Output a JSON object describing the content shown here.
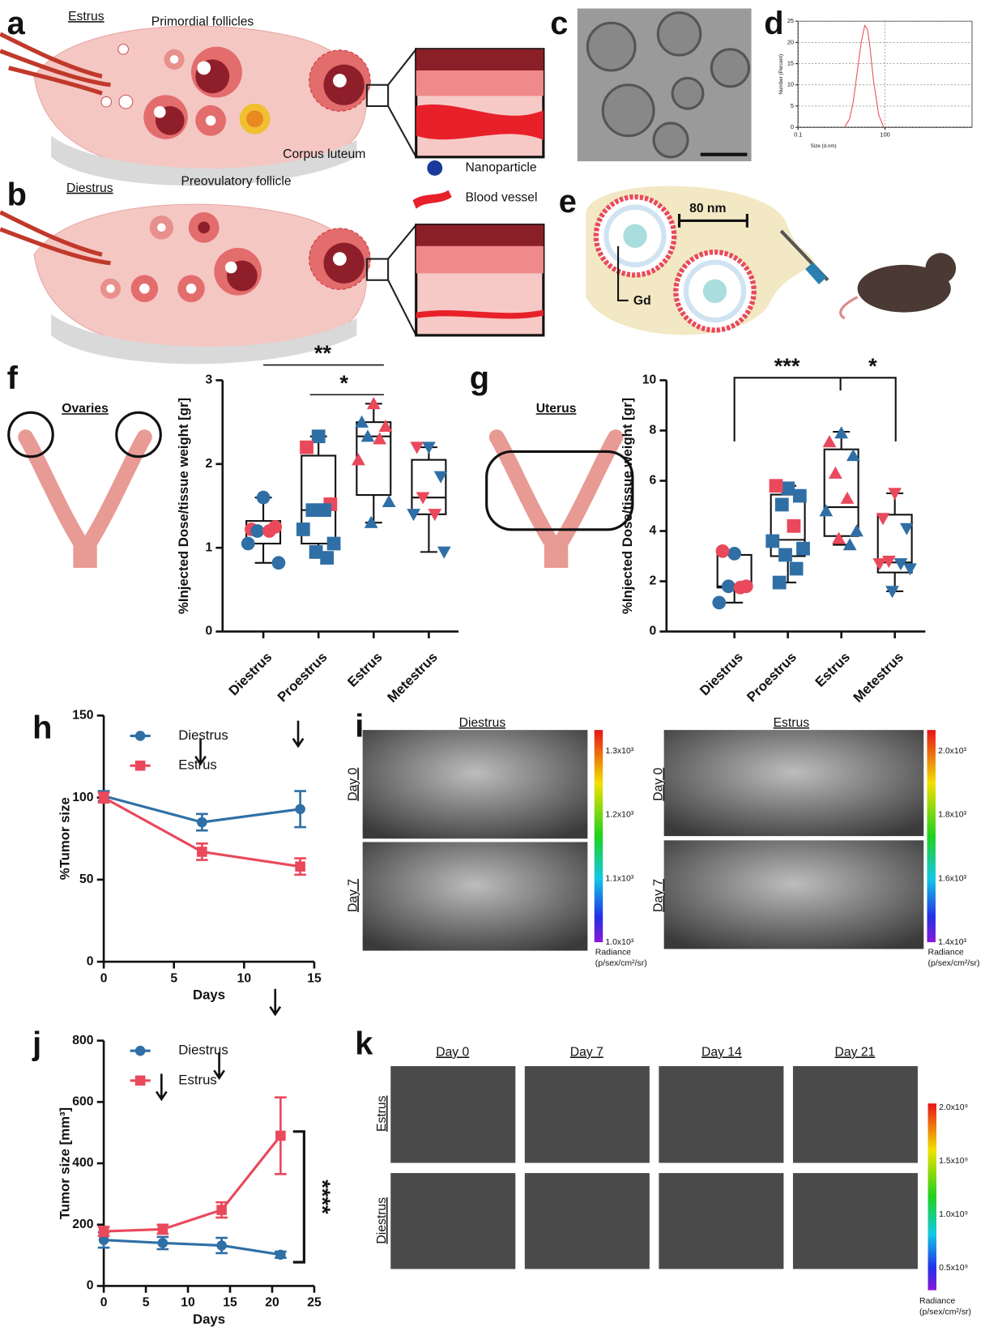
{
  "letters": [
    "a",
    "b",
    "c",
    "d",
    "e",
    "f",
    "g",
    "h",
    "i",
    "j",
    "k"
  ],
  "panel_a": {
    "title": "Estrus",
    "labels": [
      "Primordial follicles",
      "Corpus luteum",
      "Preovulatory follicle"
    ]
  },
  "panel_b": {
    "title": "Diestrus",
    "legend": [
      "Nanoparticle",
      "Blood vessel"
    ]
  },
  "panel_e": {
    "size": "80 nm",
    "core": "Gd"
  },
  "panel_f": {
    "organ": "Ovaries"
  },
  "panel_g": {
    "organ": "Uterus"
  },
  "panel_i": {
    "columns": [
      "Diestrus",
      "Estrus"
    ],
    "rows": [
      "Day 0",
      "Day 7"
    ],
    "colorbars": [
      {
        "ticks": [
          "1.3x10³",
          "1.2x10³",
          "1.1x10³",
          "1.0x10³"
        ],
        "label": [
          "Radiance",
          "(p/sex/cm²/sr)"
        ]
      },
      {
        "ticks": [
          "2.0x10³",
          "1.8x10³",
          "1.6x10³",
          "1.4x10³"
        ],
        "label": [
          "Radiance",
          "(p/sex/cm²/sr)"
        ]
      }
    ]
  },
  "panel_k": {
    "columns": [
      "Day 0",
      "Day 7",
      "Day 14",
      "Day 21"
    ],
    "rows": [
      "Estrus",
      "Diestrus"
    ],
    "colorbar": {
      "ticks": [
        "2.0x10⁹",
        "1.5x10⁹",
        "1.0x10⁹",
        "0.5x10⁹"
      ],
      "label": [
        "Radiance",
        "(p/sex/cm²/sr)"
      ]
    }
  },
  "chart_data": [
    {
      "type": "line",
      "x_label": "Size (d.nm)",
      "y_label": "Number (Percent)",
      "log_x": true,
      "grid": true,
      "xlim": [
        0.1,
        100000
      ],
      "xticks": [
        0.1,
        100
      ],
      "ylim": [
        0,
        25
      ],
      "yticks": [
        0,
        5,
        10,
        15,
        20,
        25
      ],
      "x": [
        4,
        6,
        8,
        10,
        15,
        20,
        25,
        30,
        40,
        60,
        90
      ],
      "series": [
        {
          "color": "#e84a5a",
          "values": [
            0,
            2,
            6,
            11,
            20,
            24,
            23,
            19,
            11,
            3,
            0
          ]
        }
      ]
    },
    {
      "type": "box",
      "y_label": "%Injected Dose/tissue weight [gr]",
      "ylim": [
        0,
        3
      ],
      "yticks": [
        0,
        1,
        2,
        3
      ],
      "annotations": [
        "**",
        "*"
      ],
      "groups": [
        {
          "name": "Diestrus",
          "shape": "circle",
          "whisker_low": 0.82,
          "q1": 1.05,
          "median": 1.22,
          "q3": 1.32,
          "whisker_high": 1.6,
          "points": [
            {
              "value": 1.6,
              "color": "#2f6fa6"
            },
            {
              "value": 1.22,
              "color": "#e9495b"
            },
            {
              "value": 1.25,
              "color": "#e9495b"
            },
            {
              "value": 1.2,
              "color": "#2f6fa6"
            },
            {
              "value": 1.2,
              "color": "#e9495b"
            },
            {
              "value": 1.05,
              "color": "#2f6fa6"
            },
            {
              "value": 0.82,
              "color": "#2f6fa6"
            }
          ]
        },
        {
          "name": "Proestrus",
          "shape": "square",
          "whisker_low": 0.88,
          "q1": 1.05,
          "median": 1.45,
          "q3": 2.1,
          "whisker_high": 2.33,
          "points": [
            {
              "value": 2.33,
              "color": "#2f6fa6"
            },
            {
              "value": 2.2,
              "color": "#e9495b"
            },
            {
              "value": 1.52,
              "color": "#e9495b"
            },
            {
              "value": 1.45,
              "color": "#2f6fa6"
            },
            {
              "value": 1.45,
              "color": "#2f6fa6"
            },
            {
              "value": 1.22,
              "color": "#2f6fa6"
            },
            {
              "value": 1.05,
              "color": "#2f6fa6"
            },
            {
              "value": 0.95,
              "color": "#2f6fa6"
            },
            {
              "value": 0.88,
              "color": "#2f6fa6"
            }
          ]
        },
        {
          "name": "Estrus",
          "shape": "triangle-up",
          "whisker_low": 1.3,
          "q1": 1.63,
          "median": 2.33,
          "q3": 2.5,
          "whisker_high": 2.72,
          "points": [
            {
              "value": 2.72,
              "color": "#e9495b"
            },
            {
              "value": 2.5,
              "color": "#2f6fa6"
            },
            {
              "value": 2.45,
              "color": "#e9495b"
            },
            {
              "value": 2.33,
              "color": "#2f6fa6"
            },
            {
              "value": 2.3,
              "color": "#e9495b"
            },
            {
              "value": 2.05,
              "color": "#e9495b"
            },
            {
              "value": 1.55,
              "color": "#2f6fa6"
            },
            {
              "value": 1.3,
              "color": "#2f6fa6"
            }
          ]
        },
        {
          "name": "Metestrus",
          "shape": "triangle-down",
          "whisker_low": 0.95,
          "q1": 1.4,
          "median": 1.6,
          "q3": 2.05,
          "whisker_high": 2.2,
          "points": [
            {
              "value": 2.2,
              "color": "#2f6fa6"
            },
            {
              "value": 2.2,
              "color": "#e9495b"
            },
            {
              "value": 1.85,
              "color": "#2f6fa6"
            },
            {
              "value": 1.6,
              "color": "#e9495b"
            },
            {
              "value": 1.4,
              "color": "#e9495b"
            },
            {
              "value": 1.4,
              "color": "#2f6fa6"
            },
            {
              "value": 0.95,
              "color": "#2f6fa6"
            }
          ]
        }
      ]
    },
    {
      "type": "box",
      "y_label": "%Injected Dose/tissue weight [gr]",
      "ylim": [
        0,
        10
      ],
      "yticks": [
        0,
        2,
        4,
        6,
        8,
        10
      ],
      "annotations": [
        "***",
        "*"
      ],
      "groups": [
        {
          "name": "Diestrus",
          "shape": "circle",
          "whisker_low": 1.15,
          "q1": 1.75,
          "median": 1.8,
          "q3": 3.05,
          "whisker_high": 3.05,
          "points": [
            {
              "value": 3.1,
              "color": "#2f6fa6"
            },
            {
              "value": 3.2,
              "color": "#e9495b"
            },
            {
              "value": 1.8,
              "color": "#e9495b"
            },
            {
              "value": 1.8,
              "color": "#2f6fa6"
            },
            {
              "value": 1.75,
              "color": "#e9495b"
            },
            {
              "value": 1.15,
              "color": "#2f6fa6"
            }
          ]
        },
        {
          "name": "Proestrus",
          "shape": "square",
          "whisker_low": 1.95,
          "q1": 3.0,
          "median": 3.65,
          "q3": 5.45,
          "whisker_high": 5.8,
          "points": [
            {
              "value": 5.7,
              "color": "#2f6fa6"
            },
            {
              "value": 5.8,
              "color": "#e9495b"
            },
            {
              "value": 5.4,
              "color": "#2f6fa6"
            },
            {
              "value": 5.05,
              "color": "#2f6fa6"
            },
            {
              "value": 4.2,
              "color": "#e9495b"
            },
            {
              "value": 3.6,
              "color": "#2f6fa6"
            },
            {
              "value": 3.3,
              "color": "#2f6fa6"
            },
            {
              "value": 3.05,
              "color": "#2f6fa6"
            },
            {
              "value": 2.5,
              "color": "#2f6fa6"
            },
            {
              "value": 1.95,
              "color": "#2f6fa6"
            }
          ]
        },
        {
          "name": "Estrus",
          "shape": "triangle-up",
          "whisker_low": 3.45,
          "q1": 3.8,
          "median": 4.95,
          "q3": 7.25,
          "whisker_high": 7.95,
          "points": [
            {
              "value": 7.9,
              "color": "#2f6fa6"
            },
            {
              "value": 7.55,
              "color": "#e9495b"
            },
            {
              "value": 7.0,
              "color": "#2f6fa6"
            },
            {
              "value": 6.3,
              "color": "#e9495b"
            },
            {
              "value": 5.3,
              "color": "#e9495b"
            },
            {
              "value": 4.8,
              "color": "#2f6fa6"
            },
            {
              "value": 4.0,
              "color": "#2f6fa6"
            },
            {
              "value": 3.7,
              "color": "#e9495b"
            },
            {
              "value": 3.45,
              "color": "#2f6fa6"
            }
          ]
        },
        {
          "name": "Metestrus",
          "shape": "triangle-down",
          "whisker_low": 1.6,
          "q1": 2.35,
          "median": 2.75,
          "q3": 4.65,
          "whisker_high": 5.5,
          "points": [
            {
              "value": 5.5,
              "color": "#e9495b"
            },
            {
              "value": 4.5,
              "color": "#e9495b"
            },
            {
              "value": 4.1,
              "color": "#2f6fa6"
            },
            {
              "value": 2.8,
              "color": "#e9495b"
            },
            {
              "value": 2.7,
              "color": "#2f6fa6"
            },
            {
              "value": 2.7,
              "color": "#e9495b"
            },
            {
              "value": 2.5,
              "color": "#2f6fa6"
            },
            {
              "value": 1.6,
              "color": "#2f6fa6"
            }
          ]
        }
      ]
    },
    {
      "type": "line",
      "x_label": "Days",
      "y_label": "%Tumor size",
      "xlim": [
        0,
        15
      ],
      "xticks": [
        0,
        5,
        10,
        15
      ],
      "ylim": [
        0,
        150
      ],
      "yticks": [
        0,
        50,
        100,
        150
      ],
      "x": [
        0,
        7,
        14
      ],
      "series": [
        {
          "name": "Diestrus",
          "color": "#2f6fa6",
          "marker": "circle",
          "values": [
            101,
            85,
            93
          ],
          "errors": [
            3,
            5,
            11
          ]
        },
        {
          "name": "Estrus",
          "color": "#e9495b",
          "marker": "square",
          "values": [
            100,
            67,
            58
          ],
          "errors": [
            3,
            5,
            5
          ]
        }
      ]
    },
    {
      "type": "line",
      "x_label": "Days",
      "y_label": "Tumor size [mm³]",
      "xlim": [
        0,
        25
      ],
      "xticks": [
        0,
        5,
        10,
        15,
        20,
        25
      ],
      "ylim": [
        0,
        800
      ],
      "yticks": [
        0,
        200,
        400,
        600,
        800
      ],
      "annotations": [
        "****"
      ],
      "x": [
        0,
        7,
        14,
        21
      ],
      "series": [
        {
          "name": "Diestrus",
          "color": "#2f6fa6",
          "marker": "circle",
          "values": [
            150,
            140,
            132,
            102
          ],
          "errors": [
            25,
            20,
            25,
            10
          ]
        },
        {
          "name": "Estrus",
          "color": "#e9495b",
          "marker": "square",
          "values": [
            178,
            185,
            248,
            490
          ],
          "errors": [
            15,
            15,
            25,
            125
          ]
        }
      ]
    }
  ]
}
